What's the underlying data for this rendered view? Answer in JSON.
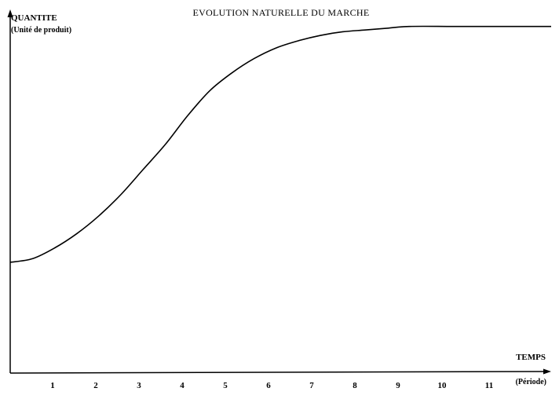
{
  "chart_data": {
    "type": "line",
    "title": "EVOLUTION NATURELLE DU MARCHE",
    "ylabel": "QUANTITE",
    "ylabel_unit": "(Unité de produit)",
    "xlabel": "TEMPS",
    "xlabel_unit": "(Période)",
    "categories": [
      "1",
      "2",
      "3",
      "4",
      "5",
      "6",
      "7",
      "8",
      "9",
      "10",
      "11"
    ],
    "xlim": [
      0,
      12.2
    ],
    "ylim": [
      0,
      100
    ],
    "grid": false,
    "legend": "none",
    "series": [
      {
        "name": "Evolution naturelle du marché",
        "x": [
          0,
          0.5,
          1,
          1.5,
          2,
          2.5,
          3,
          3.5,
          4,
          4.5,
          5,
          5.5,
          6,
          6.5,
          7,
          7.5,
          8,
          8.5,
          9,
          10,
          11,
          12.2
        ],
        "y": [
          31,
          32,
          35,
          39,
          44,
          50,
          57,
          64,
          72,
          79,
          84,
          88,
          91,
          93,
          94.5,
          95.5,
          96,
          96.5,
          97,
          97,
          97,
          97
        ]
      }
    ]
  }
}
